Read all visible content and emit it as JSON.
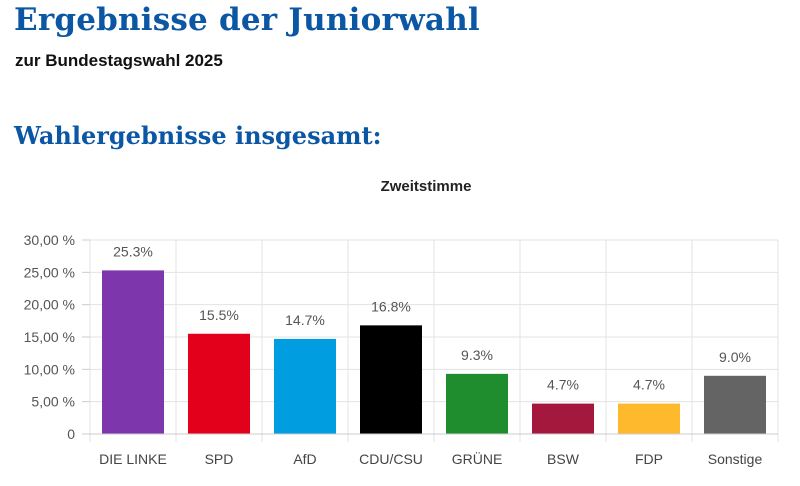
{
  "header": {
    "title": "Ergebnisse der Juniorwahl",
    "subtitle": "zur Bundestagswahl 2025"
  },
  "section": {
    "title": "Wahlergebnisse insgesamt:"
  },
  "chart_data": {
    "type": "bar",
    "title": "Zweitstimme",
    "categories": [
      "DIE LINKE",
      "SPD",
      "AfD",
      "CDU/CSU",
      "GRÜNE",
      "BSW",
      "FDP",
      "Sonstige"
    ],
    "values": [
      25.3,
      15.5,
      14.7,
      16.8,
      9.3,
      4.7,
      4.7,
      9.0
    ],
    "value_labels": [
      "25.3%",
      "15.5%",
      "14.7%",
      "16.8%",
      "9.3%",
      "4.7%",
      "4.7%",
      "9.0%"
    ],
    "colors": [
      "#7e36ad",
      "#e3001b",
      "#009ee0",
      "#000000",
      "#1f8d2d",
      "#a5183e",
      "#ffb92c",
      "#646464"
    ],
    "ylim": [
      0,
      30
    ],
    "yticks": [
      0,
      5,
      10,
      15,
      20,
      25,
      30
    ],
    "ytick_labels": [
      "0",
      "5,00 %",
      "10,00 %",
      "15,00 %",
      "20,00 %",
      "25,00 %",
      "30,00 %"
    ],
    "grid": true,
    "xlabel": "",
    "ylabel": ""
  }
}
